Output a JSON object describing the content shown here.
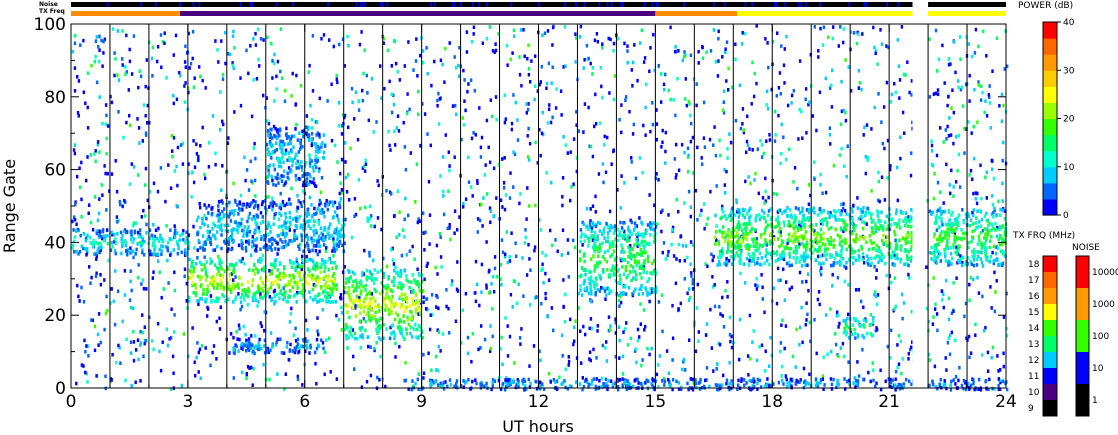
{
  "chart_data": {
    "type": "heatmap",
    "xlabel": "UT hours",
    "ylabel": "Range Gate",
    "xlim": [
      0,
      24
    ],
    "ylim": [
      0,
      100
    ],
    "x_ticks": [
      "0",
      "3",
      "6",
      "9",
      "12",
      "15",
      "18",
      "21",
      "24"
    ],
    "y_ticks": [
      "0",
      "20",
      "40",
      "60",
      "80",
      "100"
    ],
    "scan_boundaries_ut": [
      1.0,
      2.0,
      3.0,
      4.0,
      5.0,
      6.0,
      7.0,
      8.0,
      9.0,
      10.0,
      11.0,
      12.0,
      13.0,
      14.0,
      15.0,
      16.0,
      17.0,
      18.0,
      19.0,
      20.0,
      21.0,
      22.0,
      23.0
    ],
    "data_gap_ut": [
      21.6,
      21.9
    ],
    "bands": [
      {
        "ut_start": 0.0,
        "ut_end": 3.0,
        "gate_start": 37,
        "gate_end": 44,
        "power_db": 10
      },
      {
        "ut_start": 3.0,
        "ut_end": 6.8,
        "gate_start": 24,
        "gate_end": 36,
        "power_db": 20
      },
      {
        "ut_start": 3.2,
        "ut_end": 7.0,
        "gate_start": 38,
        "gate_end": 52,
        "power_db": 8
      },
      {
        "ut_start": 5.0,
        "ut_end": 6.5,
        "gate_start": 56,
        "gate_end": 72,
        "power_db": 8
      },
      {
        "ut_start": 4.0,
        "ut_end": 6.5,
        "gate_start": 10,
        "gate_end": 14,
        "power_db": 6
      },
      {
        "ut_start": 7.0,
        "ut_end": 9.0,
        "gate_start": 14,
        "gate_end": 33,
        "power_db": 20
      },
      {
        "ut_start": 13.0,
        "ut_end": 15.0,
        "gate_start": 26,
        "gate_end": 46,
        "power_db": 15
      },
      {
        "ut_start": 16.5,
        "ut_end": 21.6,
        "gate_start": 34,
        "gate_end": 50,
        "power_db": 17
      },
      {
        "ut_start": 22.0,
        "ut_end": 24.0,
        "gate_start": 34,
        "gate_end": 50,
        "power_db": 15
      },
      {
        "ut_start": 19.8,
        "ut_end": 20.6,
        "gate_start": 14,
        "gate_end": 20,
        "power_db": 14
      },
      {
        "ut_start": 8.5,
        "ut_end": 21.6,
        "gate_start": 0,
        "gate_end": 3,
        "power_db": 6
      },
      {
        "ut_start": 22.0,
        "ut_end": 24.0,
        "gate_start": 0,
        "gate_end": 3,
        "power_db": 6
      }
    ],
    "tx_freq_segments": [
      {
        "ut_start": 0.0,
        "ut_end": 2.8,
        "color": "#ff8c00"
      },
      {
        "ut_start": 2.8,
        "ut_end": 15.0,
        "color": "#4b0082"
      },
      {
        "ut_start": 15.0,
        "ut_end": 17.1,
        "color": "#ff8c00"
      },
      {
        "ut_start": 17.1,
        "ut_end": 21.6,
        "color": "#ffff00"
      },
      {
        "ut_start": 22.0,
        "ut_end": 24.0,
        "color": "#ffff00"
      }
    ],
    "noise_segments": [
      {
        "ut_start": 0.0,
        "ut_end": 21.6,
        "color": "#000000"
      },
      {
        "ut_start": 22.0,
        "ut_end": 24.0,
        "color": "#000000"
      }
    ],
    "power_colorbar": {
      "title": "POWER (dB)",
      "range": [
        0,
        40
      ],
      "tick_labels": [
        "0",
        "10",
        "20",
        "30",
        "40"
      ],
      "colors": [
        "#0000ff",
        "#0066ff",
        "#00ccff",
        "#00ffcc",
        "#00ff66",
        "#33ff00",
        "#99ff00",
        "#ffff00",
        "#ffcc00",
        "#ff9900",
        "#ff6600",
        "#ff0000"
      ]
    },
    "tx_freq_colorbar": {
      "title": "TX FRQ (MHz)",
      "tick_labels": [
        "18",
        "17",
        "16",
        "15",
        "14",
        "13",
        "12",
        "11",
        "10",
        "9"
      ],
      "colors": [
        "#ff0000",
        "#ff6600",
        "#ff9900",
        "#ffff00",
        "#33ff00",
        "#00ff66",
        "#00ccff",
        "#0000ff",
        "#4b0082",
        "#000000"
      ]
    },
    "noise_colorbar": {
      "title": "NOISE",
      "tick_labels": [
        "10000",
        "1000",
        "100",
        "10",
        "1"
      ],
      "colors": [
        "#ff0000",
        "#ff9900",
        "#33ff00",
        "#0000ff",
        "#000000"
      ]
    },
    "strip_labels": {
      "noise": "Noise",
      "tx_freq": "TX Freq"
    }
  }
}
